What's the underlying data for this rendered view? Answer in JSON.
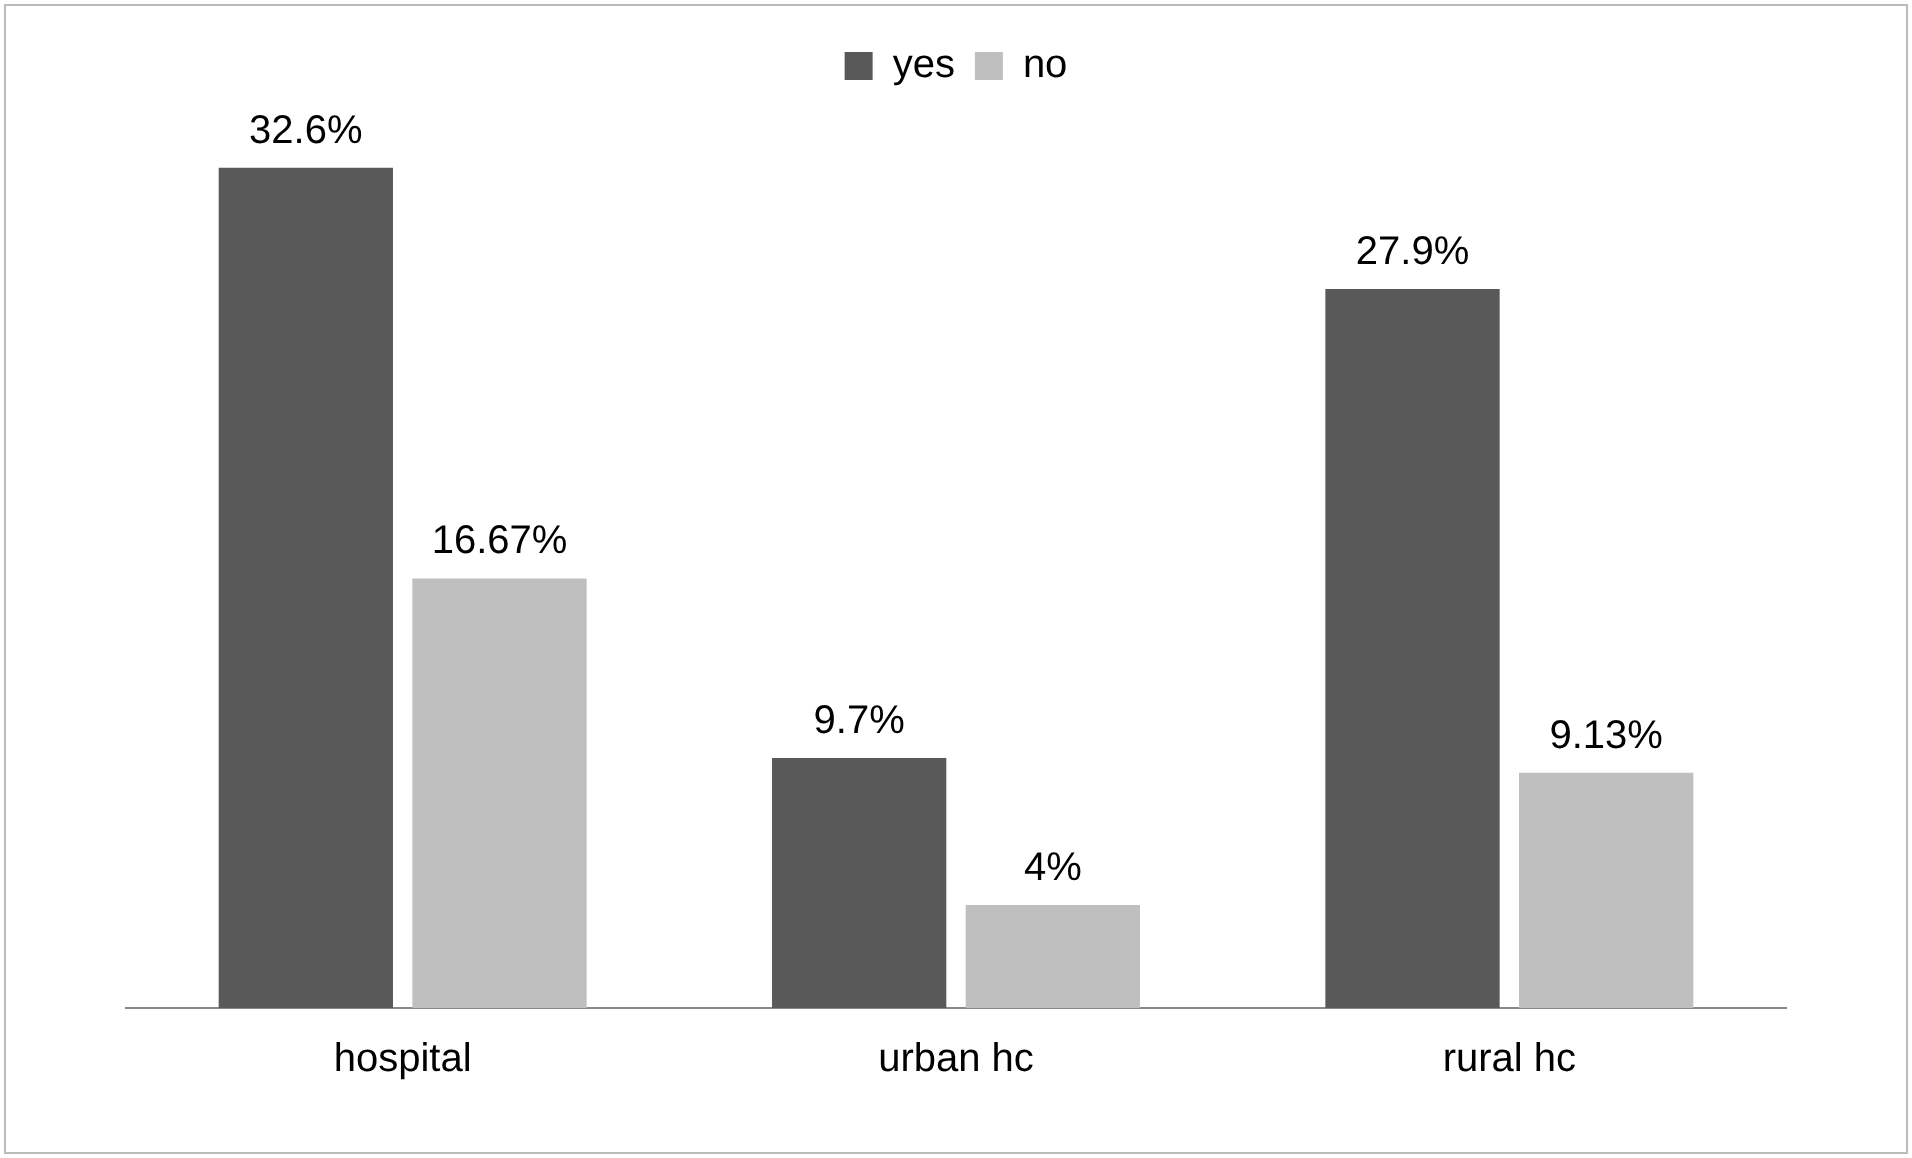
{
  "chart_data": {
    "type": "bar",
    "categories": [
      "hospital",
      "urban hc",
      "rural hc"
    ],
    "series": [
      {
        "name": "yes",
        "color": "#595959",
        "values": [
          32.6,
          9.7,
          27.9
        ],
        "value_labels": [
          "32.6%",
          "9.7%",
          "27.9%"
        ]
      },
      {
        "name": "no",
        "color": "#bfbfbf",
        "values": [
          16.67,
          4,
          9.13
        ],
        "value_labels": [
          "16.67%",
          "4%",
          "9.13%"
        ]
      }
    ],
    "legend": "top",
    "grid": false
  }
}
